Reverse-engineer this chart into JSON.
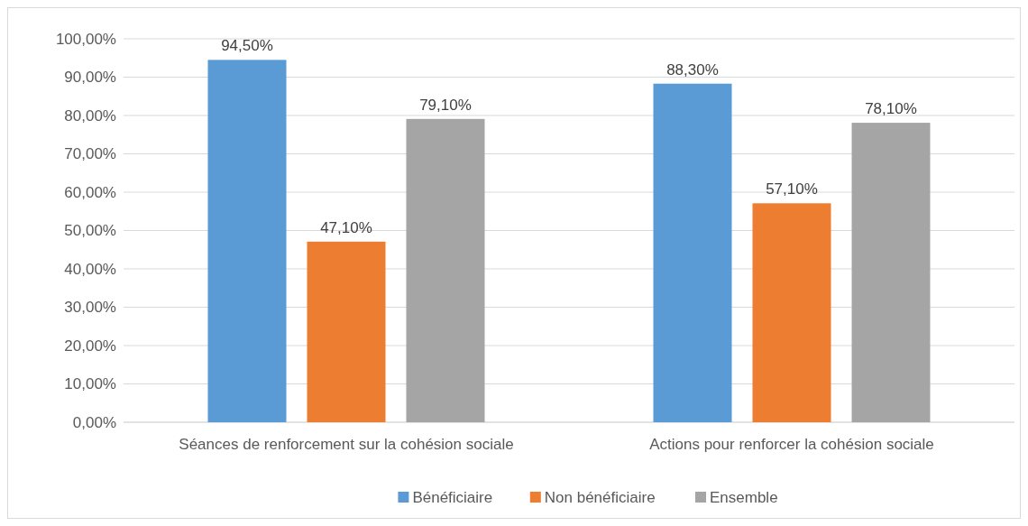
{
  "chart_data": {
    "type": "bar",
    "categories": [
      "Séances de renforcement sur la cohésion sociale",
      "Actions pour renforcer la cohésion sociale"
    ],
    "series": [
      {
        "name": "Bénéficiaire",
        "color": "#5b9bd5",
        "values": [
          94.5,
          88.3
        ],
        "value_labels": [
          "94,50%",
          "88,30%"
        ]
      },
      {
        "name": "Non bénéficiaire",
        "color": "#ed7d31",
        "values": [
          47.1,
          57.1
        ],
        "value_labels": [
          "47,10%",
          "57,10%"
        ]
      },
      {
        "name": "Ensemble",
        "color": "#a5a5a5",
        "values": [
          79.1,
          78.1
        ],
        "value_labels": [
          "79,10%",
          "78,10%"
        ]
      }
    ],
    "ylim": [
      0,
      100
    ],
    "yticks": [
      {
        "value": 0,
        "label": "0,00%"
      },
      {
        "value": 10,
        "label": "10,00%"
      },
      {
        "value": 20,
        "label": "20,00%"
      },
      {
        "value": 30,
        "label": "30,00%"
      },
      {
        "value": 40,
        "label": "40,00%"
      },
      {
        "value": 50,
        "label": "50,00%"
      },
      {
        "value": 60,
        "label": "60,00%"
      },
      {
        "value": 70,
        "label": "70,00%"
      },
      {
        "value": 80,
        "label": "80,00%"
      },
      {
        "value": 90,
        "label": "90,00%"
      },
      {
        "value": 100,
        "label": "100,00%"
      }
    ],
    "grid": "y",
    "legend": "bottom"
  }
}
